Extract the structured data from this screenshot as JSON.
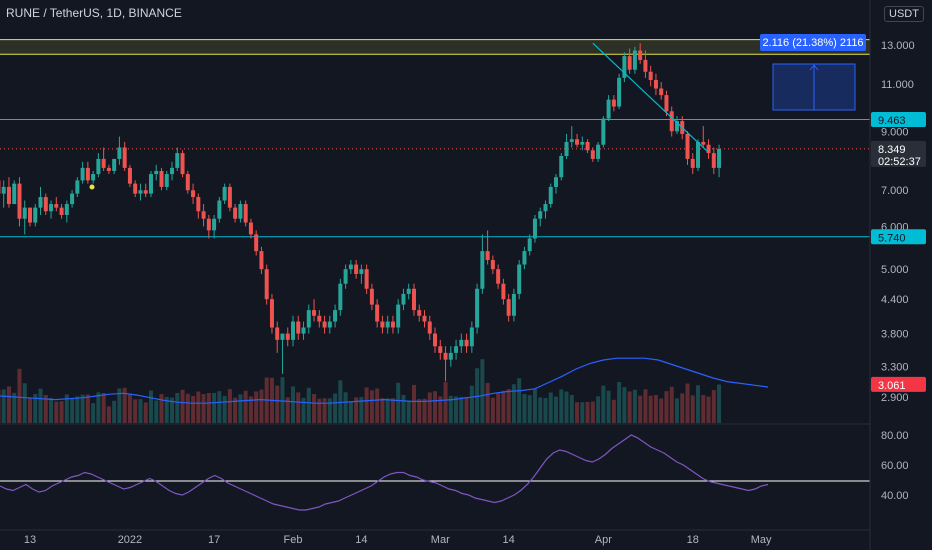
{
  "header": {
    "symbol": "RUNE / TetherUS, 1D, BINANCE",
    "currency": "USDT"
  },
  "measure_label": "2.116 (21.38%) 2116",
  "price_labels": {
    "level_high": "9.463",
    "current": "8.349",
    "countdown": "02:52:37",
    "level_mid": "5.740",
    "level_low": "3.061"
  },
  "colors": {
    "up": "#26a69a",
    "down": "#ef5350",
    "cyan": "#00bcd4",
    "yellow": "#e9e34a",
    "red_line": "#f23645",
    "blue": "#2962ff",
    "volume_ma": "#2962ff",
    "rsi": "#7e57c2",
    "white": "#ffffff"
  },
  "chart_data": {
    "type": "candlestick",
    "price_axis": {
      "scale": "log",
      "ticks": [
        "13.000",
        "11.000",
        "9.000",
        "7.000",
        "6.000",
        "5.000",
        "4.400",
        "3.800",
        "3.300",
        "2.900"
      ],
      "tick_values": [
        13.0,
        11.0,
        9.0,
        7.0,
        6.0,
        5.0,
        4.4,
        3.8,
        3.3,
        2.9
      ]
    },
    "x_axis": {
      "labels": [
        "13",
        "2022",
        "17",
        "Feb",
        "14",
        "Mar",
        "14",
        "Apr",
        "18",
        "May"
      ],
      "label_dates": [
        "2021-12-13",
        "2022-01-01",
        "2022-01-17",
        "2022-02-01",
        "2022-02-14",
        "2022-03-01",
        "2022-03-14",
        "2022-04-01",
        "2022-04-18",
        "2022-05-01"
      ]
    },
    "horizontal_levels": [
      {
        "price": 13.3,
        "color": "yellow"
      },
      {
        "price": 12.5,
        "color": "yellow"
      },
      {
        "price": 9.463,
        "color": "cyan"
      },
      {
        "price": 5.74,
        "color": "cyan"
      },
      {
        "price": 3.061,
        "color": "red"
      }
    ],
    "current_price": 8.349,
    "trendline": {
      "from": [
        "2022-03-30",
        13.1
      ],
      "to": [
        "2022-04-19",
        8.1
      ]
    },
    "candles": [
      [
        "2021-12-06",
        7.8,
        7.8,
        7.3,
        7.5
      ],
      [
        "2021-12-07",
        7.3,
        7.5,
        6.7,
        6.9
      ],
      [
        "2021-12-08",
        6.9,
        7.3,
        6.5,
        7.1
      ],
      [
        "2021-12-09",
        7.1,
        7.4,
        6.5,
        6.6
      ],
      [
        "2021-12-10",
        6.6,
        7.3,
        6.6,
        7.2
      ],
      [
        "2021-12-11",
        7.2,
        7.4,
        6.0,
        6.2
      ],
      [
        "2021-12-12",
        6.2,
        6.7,
        5.8,
        6.5
      ],
      [
        "2021-12-13",
        6.5,
        6.5,
        6.0,
        6.1
      ],
      [
        "2021-12-14",
        6.1,
        6.6,
        6.0,
        6.5
      ],
      [
        "2021-12-15",
        6.5,
        7.1,
        6.3,
        6.8
      ],
      [
        "2021-12-16",
        6.8,
        6.9,
        6.3,
        6.4
      ],
      [
        "2021-12-17",
        6.4,
        6.7,
        6.2,
        6.6
      ],
      [
        "2021-12-18",
        6.6,
        6.8,
        6.4,
        6.5
      ],
      [
        "2021-12-19",
        6.5,
        6.6,
        6.2,
        6.3
      ],
      [
        "2021-12-20",
        6.3,
        6.7,
        6.1,
        6.6
      ],
      [
        "2021-12-21",
        6.6,
        7.0,
        6.5,
        6.9
      ],
      [
        "2021-12-22",
        6.9,
        7.4,
        6.8,
        7.3
      ],
      [
        "2021-12-23",
        7.3,
        7.9,
        7.2,
        7.7
      ],
      [
        "2021-12-24",
        7.7,
        7.9,
        7.2,
        7.3
      ],
      [
        "2021-12-25",
        7.3,
        7.6,
        7.2,
        7.5
      ],
      [
        "2021-12-26",
        7.5,
        8.2,
        7.4,
        8.0
      ],
      [
        "2021-12-27",
        8.0,
        8.4,
        7.6,
        7.7
      ],
      [
        "2021-12-28",
        7.7,
        7.8,
        7.5,
        7.6
      ],
      [
        "2021-12-29",
        7.6,
        8.0,
        7.5,
        8.0
      ],
      [
        "2021-12-30",
        8.0,
        8.8,
        7.8,
        8.4
      ],
      [
        "2021-12-31",
        8.4,
        8.6,
        7.6,
        7.7
      ],
      [
        "2022-01-01",
        7.7,
        7.8,
        7.1,
        7.2
      ],
      [
        "2022-01-02",
        7.2,
        7.3,
        6.8,
        6.9
      ],
      [
        "2022-01-03",
        6.9,
        7.2,
        6.7,
        7.0
      ],
      [
        "2022-01-04",
        7.0,
        7.2,
        6.8,
        6.9
      ],
      [
        "2022-01-05",
        6.9,
        7.6,
        6.8,
        7.5
      ],
      [
        "2022-01-06",
        7.5,
        7.8,
        7.3,
        7.6
      ],
      [
        "2022-01-07",
        7.6,
        7.7,
        7.0,
        7.1
      ],
      [
        "2022-01-08",
        7.1,
        7.6,
        7.0,
        7.5
      ],
      [
        "2022-01-09",
        7.5,
        7.9,
        7.3,
        7.7
      ],
      [
        "2022-01-10",
        7.7,
        8.4,
        7.6,
        8.2
      ],
      [
        "2022-01-11",
        8.2,
        8.3,
        7.4,
        7.5
      ],
      [
        "2022-01-12",
        7.5,
        7.6,
        6.9,
        7.0
      ],
      [
        "2022-01-13",
        7.0,
        7.2,
        6.6,
        6.8
      ],
      [
        "2022-01-14",
        6.8,
        6.9,
        6.2,
        6.4
      ],
      [
        "2022-01-15",
        6.4,
        6.6,
        6.0,
        6.2
      ],
      [
        "2022-01-16",
        6.2,
        6.3,
        5.7,
        5.9
      ],
      [
        "2022-01-17",
        5.9,
        6.3,
        5.7,
        6.2
      ],
      [
        "2022-01-18",
        6.2,
        6.8,
        6.1,
        6.7
      ],
      [
        "2022-01-19",
        6.7,
        7.2,
        6.6,
        7.1
      ],
      [
        "2022-01-20",
        7.1,
        7.2,
        6.4,
        6.5
      ],
      [
        "2022-01-21",
        6.5,
        6.6,
        6.1,
        6.2
      ],
      [
        "2022-01-22",
        6.2,
        6.7,
        6.1,
        6.6
      ],
      [
        "2022-01-23",
        6.6,
        6.7,
        6.0,
        6.1
      ],
      [
        "2022-01-24",
        6.1,
        6.2,
        5.7,
        5.8
      ],
      [
        "2022-01-25",
        5.8,
        5.9,
        5.3,
        5.4
      ],
      [
        "2022-01-26",
        5.4,
        5.5,
        4.9,
        5.0
      ],
      [
        "2022-01-27",
        5.0,
        5.1,
        4.3,
        4.4
      ],
      [
        "2022-01-28",
        4.4,
        4.5,
        3.8,
        3.9
      ],
      [
        "2022-01-29",
        3.9,
        4.0,
        3.5,
        3.7
      ],
      [
        "2022-01-30",
        3.7,
        3.8,
        3.2,
        3.8
      ],
      [
        "2022-01-31",
        3.8,
        3.9,
        3.6,
        3.7
      ],
      [
        "2022-02-01",
        3.7,
        4.1,
        3.6,
        4.0
      ],
      [
        "2022-02-02",
        4.0,
        4.1,
        3.7,
        3.8
      ],
      [
        "2022-02-03",
        3.8,
        4.0,
        3.7,
        3.9
      ],
      [
        "2022-02-04",
        3.9,
        4.3,
        3.8,
        4.2
      ],
      [
        "2022-02-05",
        4.2,
        4.4,
        4.0,
        4.1
      ],
      [
        "2022-02-06",
        4.1,
        4.2,
        3.9,
        4.0
      ],
      [
        "2022-02-07",
        4.0,
        4.1,
        3.8,
        3.9
      ],
      [
        "2022-02-08",
        3.9,
        4.1,
        3.8,
        4.0
      ],
      [
        "2022-02-09",
        4.0,
        4.3,
        3.9,
        4.2
      ],
      [
        "2022-02-10",
        4.2,
        4.8,
        4.1,
        4.7
      ],
      [
        "2022-02-11",
        4.7,
        5.1,
        4.6,
        5.0
      ],
      [
        "2022-02-12",
        5.0,
        5.2,
        4.9,
        5.1
      ],
      [
        "2022-02-13",
        5.1,
        5.2,
        4.8,
        4.9
      ],
      [
        "2022-02-14",
        4.9,
        5.1,
        4.7,
        5.0
      ],
      [
        "2022-02-15",
        5.0,
        5.1,
        4.5,
        4.6
      ],
      [
        "2022-02-16",
        4.6,
        4.7,
        4.2,
        4.3
      ],
      [
        "2022-02-17",
        4.3,
        4.4,
        3.9,
        4.0
      ],
      [
        "2022-02-18",
        4.0,
        4.1,
        3.8,
        3.9
      ],
      [
        "2022-02-19",
        3.9,
        4.1,
        3.8,
        4.0
      ],
      [
        "2022-02-20",
        4.0,
        4.1,
        3.8,
        3.9
      ],
      [
        "2022-02-21",
        3.9,
        4.4,
        3.8,
        4.3
      ],
      [
        "2022-02-22",
        4.3,
        4.6,
        4.2,
        4.5
      ],
      [
        "2022-02-23",
        4.5,
        4.7,
        4.4,
        4.6
      ],
      [
        "2022-02-24",
        4.6,
        4.7,
        4.1,
        4.2
      ],
      [
        "2022-02-25",
        4.2,
        4.3,
        4.0,
        4.1
      ],
      [
        "2022-02-26",
        4.1,
        4.2,
        3.9,
        4.0
      ],
      [
        "2022-02-27",
        4.0,
        4.1,
        3.7,
        3.8
      ],
      [
        "2022-02-28",
        3.8,
        3.9,
        3.5,
        3.6
      ],
      [
        "2022-03-01",
        3.6,
        3.7,
        3.4,
        3.5
      ],
      [
        "2022-03-02",
        3.5,
        3.6,
        3.1,
        3.4
      ],
      [
        "2022-03-03",
        3.4,
        3.6,
        3.3,
        3.5
      ],
      [
        "2022-03-04",
        3.5,
        3.7,
        3.4,
        3.6
      ],
      [
        "2022-03-05",
        3.6,
        3.8,
        3.5,
        3.7
      ],
      [
        "2022-03-06",
        3.7,
        3.8,
        3.5,
        3.6
      ],
      [
        "2022-03-07",
        3.6,
        4.0,
        3.5,
        3.9
      ],
      [
        "2022-03-08",
        3.9,
        4.7,
        3.8,
        4.6
      ],
      [
        "2022-03-09",
        4.6,
        5.8,
        4.5,
        5.4
      ],
      [
        "2022-03-10",
        5.4,
        5.9,
        5.1,
        5.2
      ],
      [
        "2022-03-11",
        5.2,
        5.3,
        4.9,
        5.0
      ],
      [
        "2022-03-12",
        5.0,
        5.1,
        4.6,
        4.7
      ],
      [
        "2022-03-13",
        4.7,
        4.8,
        4.3,
        4.4
      ],
      [
        "2022-03-14",
        4.4,
        4.5,
        4.0,
        4.1
      ],
      [
        "2022-03-15",
        4.1,
        4.6,
        4.0,
        4.5
      ],
      [
        "2022-03-16",
        4.5,
        5.2,
        4.4,
        5.1
      ],
      [
        "2022-03-17",
        5.1,
        5.5,
        5.0,
        5.4
      ],
      [
        "2022-03-18",
        5.4,
        5.8,
        5.3,
        5.7
      ],
      [
        "2022-03-19",
        5.7,
        6.3,
        5.6,
        6.2
      ],
      [
        "2022-03-20",
        6.2,
        6.5,
        6.0,
        6.4
      ],
      [
        "2022-03-21",
        6.4,
        6.7,
        6.2,
        6.6
      ],
      [
        "2022-03-22",
        6.6,
        7.2,
        6.5,
        7.1
      ],
      [
        "2022-03-23",
        7.1,
        7.5,
        6.9,
        7.4
      ],
      [
        "2022-03-24",
        7.4,
        8.2,
        7.3,
        8.1
      ],
      [
        "2022-03-25",
        8.1,
        8.9,
        8.0,
        8.6
      ],
      [
        "2022-03-26",
        8.6,
        9.2,
        8.4,
        8.7
      ],
      [
        "2022-03-27",
        8.7,
        8.9,
        8.4,
        8.5
      ],
      [
        "2022-03-28",
        8.5,
        8.8,
        8.3,
        8.6
      ],
      [
        "2022-03-29",
        8.6,
        8.7,
        8.2,
        8.3
      ],
      [
        "2022-03-30",
        8.3,
        8.4,
        7.9,
        8.0
      ],
      [
        "2022-03-31",
        8.0,
        8.6,
        7.9,
        8.5
      ],
      [
        "2022-04-01",
        8.5,
        9.6,
        8.4,
        9.5
      ],
      [
        "2022-04-02",
        9.5,
        10.5,
        9.4,
        10.3
      ],
      [
        "2022-04-03",
        10.3,
        10.5,
        9.8,
        10.0
      ],
      [
        "2022-04-04",
        10.0,
        11.5,
        9.9,
        11.3
      ],
      [
        "2022-04-05",
        11.3,
        12.6,
        11.1,
        12.4
      ],
      [
        "2022-04-06",
        12.4,
        12.8,
        11.5,
        11.7
      ],
      [
        "2022-04-07",
        11.7,
        12.9,
        11.5,
        12.7
      ],
      [
        "2022-04-08",
        12.7,
        13.1,
        12.0,
        12.2
      ],
      [
        "2022-04-09",
        12.2,
        12.7,
        11.3,
        11.6
      ],
      [
        "2022-04-10",
        11.6,
        11.9,
        10.9,
        11.2
      ],
      [
        "2022-04-11",
        11.2,
        11.5,
        10.5,
        10.8
      ],
      [
        "2022-04-12",
        10.8,
        11.1,
        10.3,
        10.5
      ],
      [
        "2022-04-13",
        10.5,
        10.7,
        9.6,
        9.8
      ],
      [
        "2022-04-14",
        9.8,
        10.0,
        8.8,
        9.0
      ],
      [
        "2022-04-15",
        9.0,
        9.6,
        8.9,
        9.4
      ],
      [
        "2022-04-16",
        9.4,
        9.6,
        8.7,
        8.9
      ],
      [
        "2022-04-17",
        8.9,
        9.0,
        7.8,
        8.0
      ],
      [
        "2022-04-18",
        8.0,
        8.2,
        7.5,
        7.7
      ],
      [
        "2022-04-19",
        7.7,
        8.7,
        7.6,
        8.6
      ],
      [
        "2022-04-20",
        8.6,
        9.2,
        8.4,
        8.5
      ],
      [
        "2022-04-21",
        8.5,
        8.7,
        8.0,
        8.2
      ],
      [
        "2022-04-22",
        8.2,
        8.4,
        7.5,
        7.7
      ],
      [
        "2022-04-23",
        7.7,
        8.5,
        7.4,
        8.35
      ]
    ],
    "volume_ma": [
      0.3,
      0.29,
      0.28,
      0.27,
      0.26,
      0.27,
      0.28,
      0.3,
      0.32,
      0.33,
      0.31,
      0.28,
      0.25,
      0.23,
      0.22,
      0.22,
      0.23,
      0.24,
      0.25,
      0.26,
      0.25,
      0.24,
      0.23,
      0.22,
      0.22,
      0.23,
      0.24,
      0.25,
      0.26,
      0.25,
      0.24,
      0.24,
      0.25,
      0.26,
      0.28,
      0.3,
      0.33,
      0.35,
      0.36,
      0.38,
      0.45,
      0.52,
      0.6,
      0.66,
      0.7,
      0.72,
      0.72,
      0.72,
      0.7,
      0.65,
      0.6,
      0.55,
      0.5,
      0.46,
      0.44,
      0.42,
      0.4
    ],
    "rsi": {
      "ticks": [
        "80.00",
        "60.00",
        "40.00"
      ],
      "tick_values": [
        80,
        60,
        40
      ],
      "level": 50,
      "values": [
        46,
        44,
        43,
        45,
        47,
        44,
        42,
        43,
        46,
        48,
        50,
        52,
        53,
        55,
        54,
        52,
        50,
        48,
        46,
        44,
        45,
        47,
        49,
        51,
        49,
        46,
        43,
        41,
        40,
        42,
        45,
        48,
        51,
        53,
        51,
        48,
        46,
        44,
        42,
        40,
        38,
        36,
        34,
        33,
        32,
        31,
        30,
        30,
        31,
        32,
        34,
        35,
        36,
        38,
        40,
        42,
        44,
        46,
        49,
        52,
        54,
        55,
        55,
        53,
        52,
        50,
        49,
        48,
        46,
        44,
        43,
        41,
        40,
        38,
        37,
        36,
        35,
        36,
        38,
        40,
        43,
        47,
        52,
        58,
        64,
        68,
        70,
        69,
        67,
        65,
        63,
        62,
        64,
        67,
        71,
        74,
        77,
        80,
        78,
        75,
        72,
        70,
        68,
        65,
        62,
        60,
        57,
        54,
        51,
        49,
        48,
        47,
        46,
        45,
        44,
        43,
        44,
        46,
        47
      ]
    }
  }
}
